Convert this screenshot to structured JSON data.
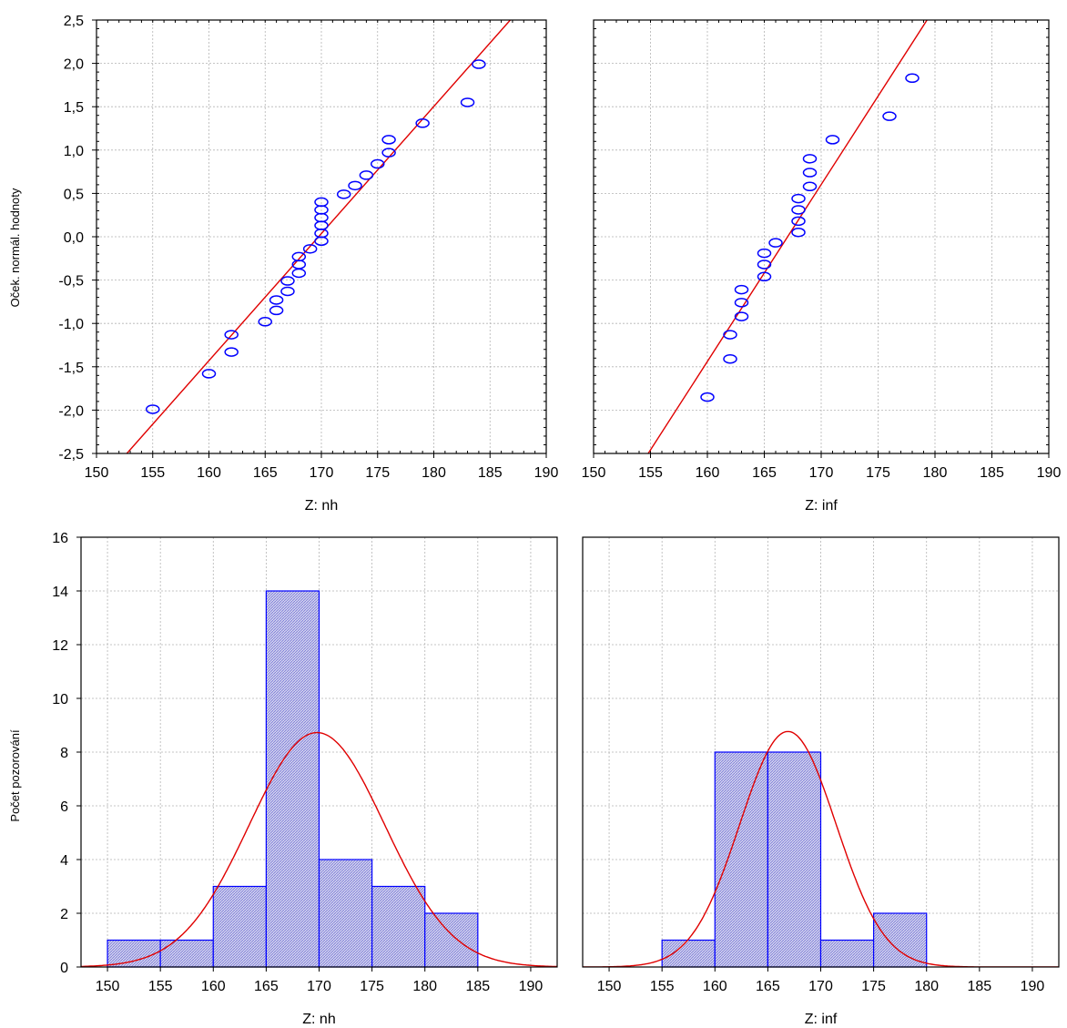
{
  "chart_data": [
    {
      "type": "scatter",
      "subtype": "normal-probability-plot",
      "xlabel": "Z: nh",
      "ylabel": "Oček. normál. hodnoty",
      "xlim": [
        150,
        190
      ],
      "ylim": [
        -2.5,
        2.5
      ],
      "x_ticks": [
        "150",
        "155",
        "160",
        "165",
        "170",
        "175",
        "180",
        "185",
        "190"
      ],
      "y_ticks": [
        "-2,5",
        "-2,0",
        "-1,5",
        "-1,0",
        "-0,5",
        "0,0",
        "0,5",
        "1,0",
        "1,5",
        "2,0",
        "2,5"
      ],
      "grid": true,
      "marker": "circle",
      "point_color": "#0000ff",
      "line_color": "#e00000",
      "fit_line": {
        "x": [
          152.7,
          186.8
        ],
        "y": [
          -2.5,
          2.5
        ]
      },
      "points": [
        [
          155,
          -1.99
        ],
        [
          160,
          -1.58
        ],
        [
          162,
          -1.33
        ],
        [
          162,
          -1.13
        ],
        [
          165,
          -0.98
        ],
        [
          166,
          -0.85
        ],
        [
          166,
          -0.73
        ],
        [
          167,
          -0.63
        ],
        [
          167,
          -0.51
        ],
        [
          168,
          -0.42
        ],
        [
          168,
          -0.32
        ],
        [
          168,
          -0.23
        ],
        [
          169,
          -0.14
        ],
        [
          170,
          -0.05
        ],
        [
          170,
          0.04
        ],
        [
          170,
          0.13
        ],
        [
          170,
          0.22
        ],
        [
          170,
          0.31
        ],
        [
          170,
          0.4
        ],
        [
          172,
          0.49
        ],
        [
          173,
          0.59
        ],
        [
          174,
          0.71
        ],
        [
          175,
          0.84
        ],
        [
          176,
          0.97
        ],
        [
          176,
          1.12
        ],
        [
          179,
          1.31
        ],
        [
          183,
          1.55
        ],
        [
          184,
          1.99
        ]
      ]
    },
    {
      "type": "scatter",
      "subtype": "normal-probability-plot",
      "xlabel": "Z: inf",
      "xlim": [
        150,
        190
      ],
      "ylim": [
        -2.5,
        2.5
      ],
      "x_ticks": [
        "150",
        "155",
        "160",
        "165",
        "170",
        "175",
        "180",
        "185",
        "190"
      ],
      "grid": true,
      "marker": "circle",
      "point_color": "#0000ff",
      "line_color": "#e00000",
      "fit_line": {
        "x": [
          154.8,
          179.3
        ],
        "y": [
          -2.5,
          2.5
        ]
      },
      "points": [
        [
          160,
          -1.85
        ],
        [
          162,
          -1.41
        ],
        [
          162,
          -1.13
        ],
        [
          163,
          -0.92
        ],
        [
          163,
          -0.76
        ],
        [
          163,
          -0.61
        ],
        [
          165,
          -0.46
        ],
        [
          165,
          -0.32
        ],
        [
          165,
          -0.19
        ],
        [
          166,
          -0.07
        ],
        [
          168,
          0.05
        ],
        [
          168,
          0.18
        ],
        [
          168,
          0.31
        ],
        [
          168,
          0.44
        ],
        [
          169,
          0.58
        ],
        [
          169,
          0.74
        ],
        [
          169,
          0.9
        ],
        [
          171,
          1.12
        ],
        [
          176,
          1.39
        ],
        [
          178,
          1.83
        ]
      ]
    },
    {
      "type": "bar",
      "subtype": "histogram",
      "xlabel": "Z: nh",
      "ylabel": "Počet pozorování",
      "xlim": [
        147.5,
        192.5
      ],
      "ylim": [
        0,
        16
      ],
      "x_ticks": [
        "150",
        "155",
        "160",
        "165",
        "170",
        "175",
        "180",
        "185",
        "190"
      ],
      "y_ticks": [
        "0",
        "2",
        "4",
        "6",
        "8",
        "10",
        "12",
        "14",
        "16"
      ],
      "grid": true,
      "bar_color": "#0000ff",
      "curve_color": "#e00000",
      "bins": [
        {
          "from": 150,
          "to": 155,
          "count": 1
        },
        {
          "from": 155,
          "to": 160,
          "count": 1
        },
        {
          "from": 160,
          "to": 165,
          "count": 3
        },
        {
          "from": 165,
          "to": 170,
          "count": 14
        },
        {
          "from": 170,
          "to": 175,
          "count": 4
        },
        {
          "from": 175,
          "to": 180,
          "count": 3
        },
        {
          "from": 180,
          "to": 185,
          "count": 2
        }
      ],
      "normal_curve": {
        "mean": 169.8,
        "sd": 6.4,
        "n": 28,
        "bin_width": 5
      }
    },
    {
      "type": "bar",
      "subtype": "histogram",
      "xlabel": "Z: inf",
      "xlim": [
        147.5,
        192.5
      ],
      "ylim": [
        0,
        16
      ],
      "x_ticks": [
        "150",
        "155",
        "160",
        "165",
        "170",
        "175",
        "180",
        "185",
        "190"
      ],
      "grid": true,
      "bar_color": "#0000ff",
      "curve_color": "#e00000",
      "bins": [
        {
          "from": 155,
          "to": 160,
          "count": 1
        },
        {
          "from": 160,
          "to": 165,
          "count": 8
        },
        {
          "from": 165,
          "to": 170,
          "count": 8
        },
        {
          "from": 170,
          "to": 175,
          "count": 1
        },
        {
          "from": 175,
          "to": 180,
          "count": 2
        }
      ],
      "normal_curve": {
        "mean": 166.9,
        "sd": 4.55,
        "n": 20,
        "bin_width": 5
      }
    }
  ]
}
